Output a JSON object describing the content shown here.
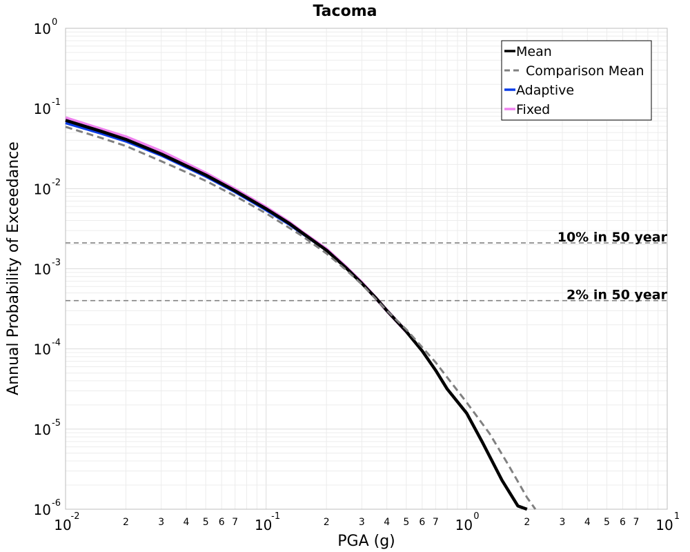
{
  "chart_data": {
    "type": "line",
    "title": "Tacoma",
    "xlabel": "PGA (g)",
    "ylabel": "Annual Probability of Exceedance",
    "xscale": "log",
    "yscale": "log",
    "xlim": [
      0.01,
      10
    ],
    "ylim": [
      1e-06,
      1
    ],
    "grid": true,
    "legend_position": "top-right",
    "x_major_ticks": [
      {
        "base": "10",
        "exp": "-2"
      },
      {
        "base": "10",
        "exp": "-1"
      },
      {
        "base": "10",
        "exp": "0"
      },
      {
        "base": "10",
        "exp": "1"
      }
    ],
    "y_major_ticks": [
      {
        "base": "10",
        "exp": "0"
      },
      {
        "base": "10",
        "exp": "-1"
      },
      {
        "base": "10",
        "exp": "-2"
      },
      {
        "base": "10",
        "exp": "-3"
      },
      {
        "base": "10",
        "exp": "-4"
      },
      {
        "base": "10",
        "exp": "-5"
      },
      {
        "base": "10",
        "exp": "-6"
      }
    ],
    "x_minor_tick_labels": [
      "2",
      "3",
      "4",
      "5",
      "6",
      "7"
    ],
    "series": [
      {
        "name": "Fixed",
        "color": "#ee82ee",
        "dash": "solid",
        "x": [
          0.01,
          0.015,
          0.02,
          0.03,
          0.05,
          0.07,
          0.1,
          0.13,
          0.15,
          0.2,
          0.25,
          0.3,
          0.35,
          0.4,
          0.5
        ],
        "y": [
          0.076,
          0.055,
          0.044,
          0.029,
          0.0155,
          0.0098,
          0.0058,
          0.0038,
          0.0029,
          0.00175,
          0.00105,
          0.00067,
          0.00044,
          0.0003,
          0.000165
        ]
      },
      {
        "name": "Adaptive",
        "color": "#0a3ce8",
        "dash": "solid",
        "x": [
          0.01,
          0.015,
          0.02,
          0.03,
          0.05,
          0.07,
          0.1,
          0.13,
          0.15,
          0.2,
          0.25,
          0.3,
          0.35,
          0.4,
          0.5
        ],
        "y": [
          0.066,
          0.049,
          0.039,
          0.026,
          0.0142,
          0.0091,
          0.0054,
          0.0036,
          0.0028,
          0.0017,
          0.00103,
          0.00066,
          0.00044,
          0.0003,
          0.000165
        ]
      },
      {
        "name": "Mean",
        "color": "#000000",
        "dash": "solid",
        "x": [
          0.01,
          0.015,
          0.02,
          0.03,
          0.05,
          0.07,
          0.1,
          0.13,
          0.15,
          0.2,
          0.25,
          0.3,
          0.35,
          0.4,
          0.5,
          0.6,
          0.7,
          0.8,
          1.0,
          1.2,
          1.5,
          1.8,
          2.0
        ],
        "y": [
          0.071,
          0.052,
          0.041,
          0.027,
          0.0148,
          0.0094,
          0.0056,
          0.0037,
          0.00285,
          0.0017,
          0.00103,
          0.00066,
          0.00044,
          0.0003,
          0.000165,
          9.45e-05,
          5.42e-05,
          3.15e-05,
          1.58e-05,
          6.8e-06,
          2.3e-06,
          1.1e-06,
          1e-06
        ]
      },
      {
        "name": "Comparison Mean",
        "color": "#808080",
        "dash": "dashed",
        "x": [
          0.01,
          0.015,
          0.02,
          0.03,
          0.05,
          0.07,
          0.1,
          0.15,
          0.2,
          0.25,
          0.3,
          0.4,
          0.5,
          0.6,
          0.7,
          0.8,
          1.0,
          1.3,
          1.6,
          2.0,
          2.2
        ],
        "y": [
          0.059,
          0.043,
          0.034,
          0.022,
          0.0125,
          0.0081,
          0.0049,
          0.0026,
          0.00155,
          0.00097,
          0.00064,
          0.0003,
          0.000175,
          0.000105,
          6.8e-05,
          4.4e-05,
          2.15e-05,
          8.8e-06,
          3.7e-06,
          1.4e-06,
          1e-06
        ]
      }
    ],
    "legend_order": [
      "Mean",
      "Comparison Mean",
      "Adaptive",
      "Fixed"
    ],
    "reference_lines": [
      {
        "label": "10% in 50 year",
        "y": 0.0021,
        "color": "#808080"
      },
      {
        "label": "2% in 50 year",
        "y": 0.0004,
        "color": "#808080"
      }
    ]
  }
}
